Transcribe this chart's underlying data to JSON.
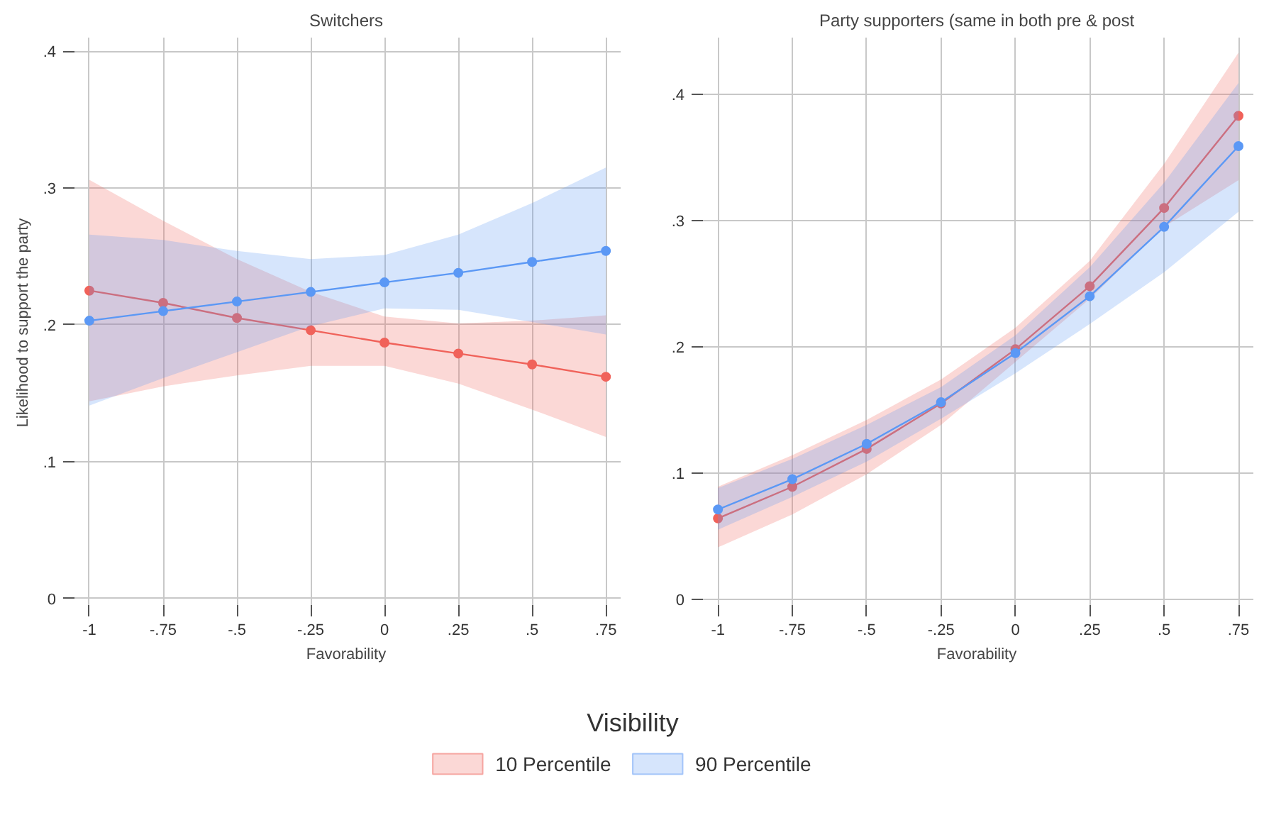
{
  "chart_data": [
    {
      "type": "line",
      "title": "Switchers",
      "xlabel": "Favorability",
      "ylabel": "Likelihood to support the party",
      "x": [
        -1,
        -0.75,
        -0.5,
        -0.25,
        0,
        0.25,
        0.5,
        0.75
      ],
      "xlim": [
        -1.06,
        0.8
      ],
      "xticks": [
        -1,
        {
          "value": -0.75,
          "label": "-.75"
        },
        {
          "value": -0.5,
          "label": "-.5"
        },
        {
          "value": -0.25,
          "label": "-.25"
        },
        0,
        {
          "value": 0.25,
          "label": ".25"
        },
        {
          "value": 0.5,
          "label": ".5"
        },
        {
          "value": 0.75,
          "label": ".75"
        }
      ],
      "ylim": [
        -0.007,
        0.41
      ],
      "yticks": [
        0,
        {
          "value": 0.1,
          "label": ".1"
        },
        {
          "value": 0.2,
          "label": ".2"
        },
        {
          "value": 0.3,
          "label": ".3"
        },
        {
          "value": 0.4,
          "label": ".4"
        }
      ],
      "grid": true,
      "marker": "circle",
      "legend": "bottom",
      "legend_title": "Visibility",
      "series": [
        {
          "name": "10 Percentile",
          "color": "#f0625a",
          "values": [
            0.225,
            0.216,
            0.205,
            0.196,
            0.187,
            0.179,
            0.171,
            0.162
          ],
          "lower": [
            0.144,
            0.155,
            0.163,
            0.17,
            0.17,
            0.157,
            0.138,
            0.118
          ],
          "upper": [
            0.306,
            0.276,
            0.248,
            0.224,
            0.206,
            0.201,
            0.203,
            0.207
          ]
        },
        {
          "name": "90 Percentile",
          "color": "#5b98f5",
          "values": [
            0.203,
            0.21,
            0.217,
            0.224,
            0.231,
            0.238,
            0.246,
            0.254
          ],
          "lower": [
            0.141,
            0.161,
            0.18,
            0.199,
            0.212,
            0.211,
            0.202,
            0.193
          ],
          "upper": [
            0.266,
            0.262,
            0.254,
            0.248,
            0.251,
            0.266,
            0.289,
            0.315
          ]
        }
      ]
    },
    {
      "type": "line",
      "title": "Party supporters (same in both pre & post",
      "xlabel": "Favorability",
      "x": [
        -1,
        -0.75,
        -0.5,
        -0.25,
        0,
        0.25,
        0.5,
        0.75
      ],
      "xlim": [
        -1.06,
        0.8
      ],
      "xticks": [
        -1,
        {
          "value": -0.75,
          "label": "-.75"
        },
        {
          "value": -0.5,
          "label": "-.5"
        },
        {
          "value": -0.25,
          "label": "-.25"
        },
        0,
        {
          "value": 0.25,
          "label": ".25"
        },
        {
          "value": 0.5,
          "label": ".5"
        },
        {
          "value": 0.75,
          "label": ".75"
        }
      ],
      "ylim": [
        -0.007,
        0.445
      ],
      "yticks": [
        0,
        {
          "value": 0.1,
          "label": ".1"
        },
        {
          "value": 0.2,
          "label": ".2"
        },
        {
          "value": 0.3,
          "label": ".3"
        },
        {
          "value": 0.4,
          "label": ".4"
        }
      ],
      "grid": true,
      "marker": "circle",
      "series": [
        {
          "color": "#f0625a",
          "values": [
            0.064,
            0.089,
            0.119,
            0.155,
            0.198,
            0.248,
            0.31,
            0.383
          ],
          "lower": [
            0.041,
            0.067,
            0.099,
            0.138,
            0.188,
            0.238,
            0.295,
            0.332
          ],
          "upper": [
            0.089,
            0.114,
            0.142,
            0.174,
            0.215,
            0.268,
            0.345,
            0.433
          ]
        },
        {
          "color": "#5b98f5",
          "values": [
            0.071,
            0.095,
            0.123,
            0.156,
            0.195,
            0.24,
            0.295,
            0.359
          ],
          "lower": [
            0.055,
            0.081,
            0.109,
            0.143,
            0.179,
            0.218,
            0.259,
            0.307
          ],
          "upper": [
            0.088,
            0.111,
            0.138,
            0.168,
            0.209,
            0.263,
            0.33,
            0.409
          ]
        }
      ]
    }
  ]
}
